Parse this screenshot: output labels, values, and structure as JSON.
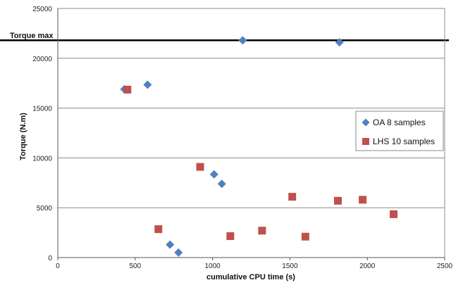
{
  "chart_data": {
    "type": "scatter",
    "xlabel": "cumulative CPU time (s)",
    "ylabel": "Torque (N.m)",
    "xlim": [
      0,
      2500
    ],
    "ylim": [
      0,
      25000
    ],
    "x_ticks": [
      0,
      500,
      1000,
      1500,
      2000,
      2500
    ],
    "y_ticks": [
      0,
      5000,
      10000,
      15000,
      20000,
      25000
    ],
    "grid": "horizontal",
    "legend_position": "right",
    "reference_line": {
      "label": "Torque max",
      "y": 21800
    },
    "series": [
      {
        "name": "OA 8 samples",
        "marker": "diamond",
        "color": "#4F81BD",
        "points": [
          [
            430,
            16900
          ],
          [
            580,
            17350
          ],
          [
            725,
            1300
          ],
          [
            780,
            500
          ],
          [
            1010,
            8350
          ],
          [
            1060,
            7400
          ],
          [
            1195,
            21800
          ],
          [
            1820,
            21600
          ]
        ]
      },
      {
        "name": "LHS 10 samples",
        "marker": "square",
        "color": "#C0504D",
        "points": [
          [
            450,
            16850
          ],
          [
            650,
            2850
          ],
          [
            920,
            9100
          ],
          [
            1115,
            2150
          ],
          [
            1320,
            2700
          ],
          [
            1515,
            6100
          ],
          [
            1600,
            2100
          ],
          [
            1810,
            5700
          ],
          [
            1970,
            5800
          ],
          [
            2170,
            4350
          ]
        ]
      }
    ]
  }
}
